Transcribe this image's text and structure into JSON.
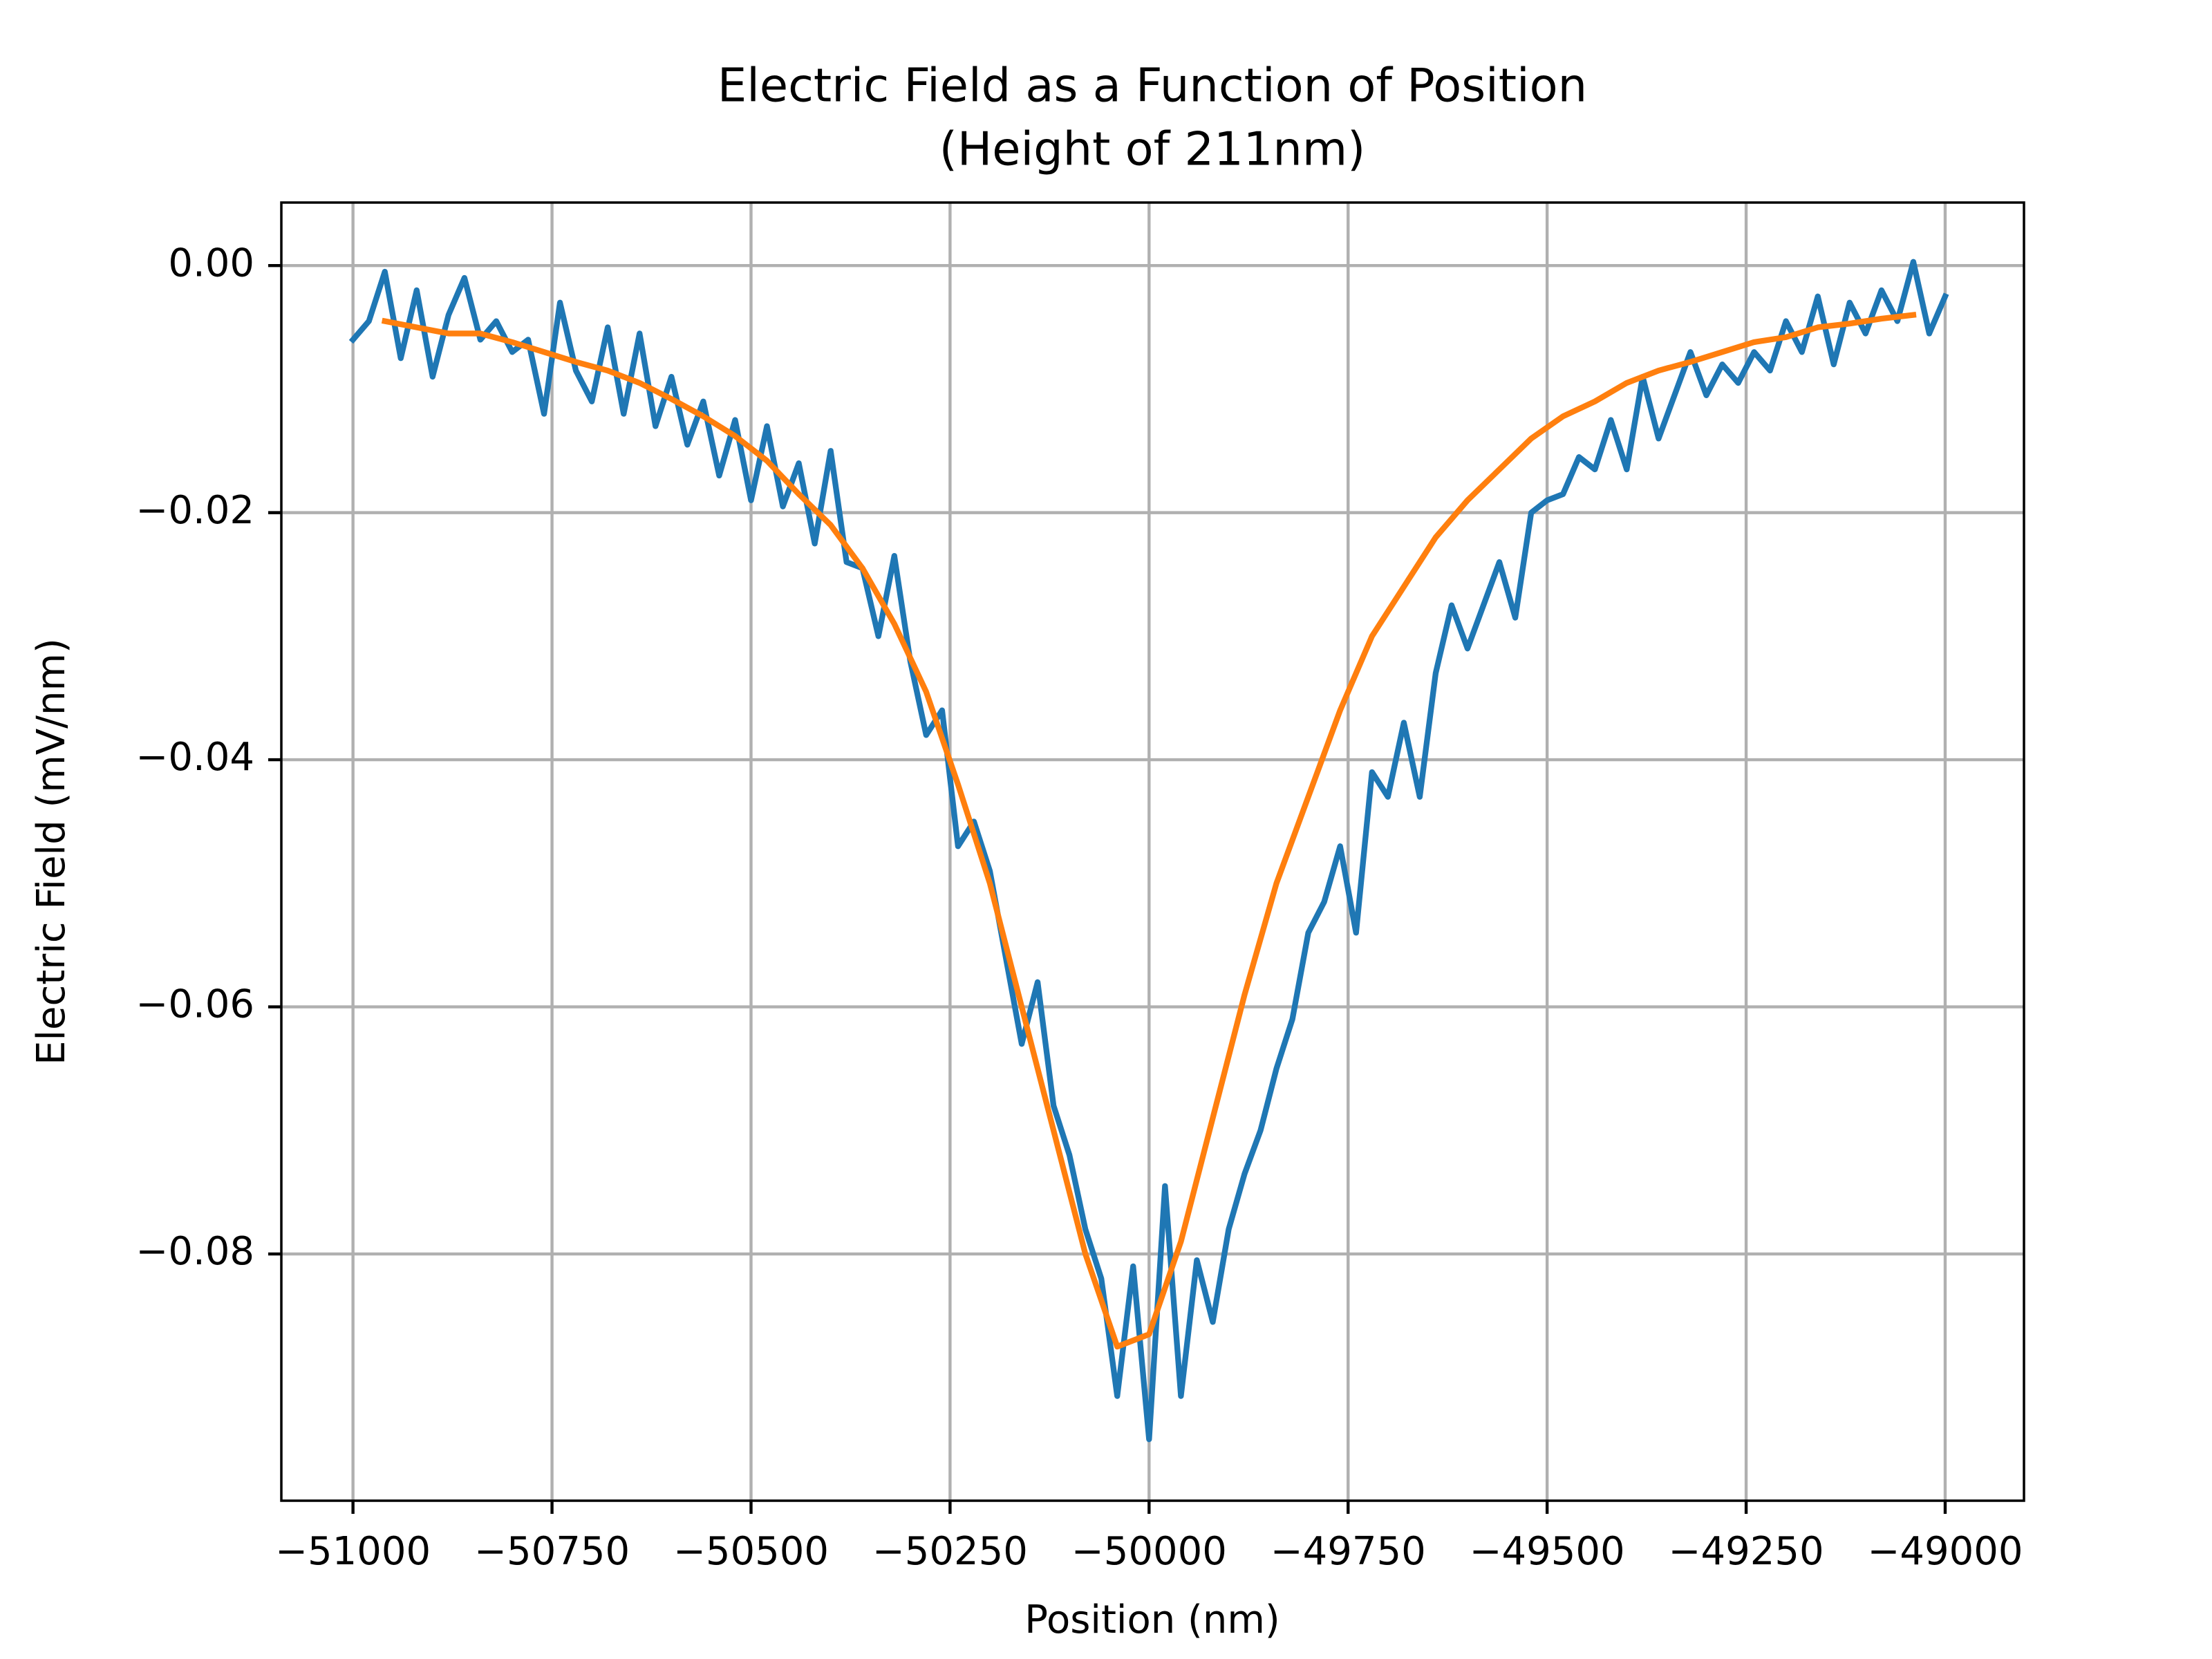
{
  "chart_data": {
    "type": "line",
    "title": "Electric Field as a Function of Position",
    "subtitle": "(Height of 211nm)",
    "x_label": "Position (nm)",
    "y_label": "Electric Field (mV/nm)",
    "xlim": [
      -51090,
      -48901
    ],
    "ylim": [
      -0.09997,
      0.0051
    ],
    "xticks": [
      {
        "value": -51000,
        "label": "−51000"
      },
      {
        "value": -50750,
        "label": "−50750"
      },
      {
        "value": -50500,
        "label": "−50500"
      },
      {
        "value": -50250,
        "label": "−50250"
      },
      {
        "value": -50000,
        "label": "−50000"
      },
      {
        "value": -49750,
        "label": "−49750"
      },
      {
        "value": -49500,
        "label": "−49500"
      },
      {
        "value": -49250,
        "label": "−49250"
      },
      {
        "value": -49000,
        "label": "−49000"
      }
    ],
    "yticks": [
      {
        "value": 0,
        "label": "0.00"
      },
      {
        "value": -0.02,
        "label": "−0.02"
      },
      {
        "value": -0.04,
        "label": "−0.04"
      },
      {
        "value": -0.06,
        "label": "−0.06"
      },
      {
        "value": -0.08,
        "label": "−0.08"
      }
    ],
    "grid": true,
    "series": [
      {
        "color": "#1f77b4",
        "x": [
          -51000,
          -50980,
          -50960,
          -50940,
          -50920,
          -50900,
          -50880,
          -50860,
          -50840,
          -50820,
          -50800,
          -50780,
          -50760,
          -50740,
          -50720,
          -50700,
          -50680,
          -50660,
          -50640,
          -50620,
          -50600,
          -50580,
          -50560,
          -50540,
          -50520,
          -50500,
          -50480,
          -50460,
          -50440,
          -50420,
          -50400,
          -50380,
          -50360,
          -50340,
          -50320,
          -50300,
          -50280,
          -50260,
          -50240,
          -50220,
          -50200,
          -50180,
          -50160,
          -50140,
          -50120,
          -50100,
          -50080,
          -50060,
          -50040,
          -50020,
          -50000,
          -49980,
          -49960,
          -49940,
          -49920,
          -49900,
          -49880,
          -49860,
          -49840,
          -49820,
          -49800,
          -49780,
          -49760,
          -49740,
          -49720,
          -49700,
          -49680,
          -49660,
          -49640,
          -49620,
          -49600,
          -49580,
          -49560,
          -49540,
          -49520,
          -49500,
          -49480,
          -49460,
          -49440,
          -49420,
          -49400,
          -49380,
          -49360,
          -49340,
          -49320,
          -49300,
          -49280,
          -49260,
          -49240,
          -49220,
          -49200,
          -49180,
          -49160,
          -49140,
          -49120,
          -49100,
          -49080,
          -49060,
          -49040,
          -49020,
          -49000
        ],
        "values": [
          -0.006,
          -0.0045,
          -0.0005,
          -0.0075,
          -0.002,
          -0.009,
          -0.004,
          -0.001,
          -0.006,
          -0.0045,
          -0.007,
          -0.006,
          -0.012,
          -0.003,
          -0.0085,
          -0.011,
          -0.005,
          -0.012,
          -0.0055,
          -0.013,
          -0.009,
          -0.0145,
          -0.011,
          -0.017,
          -0.0125,
          -0.019,
          -0.013,
          -0.0195,
          -0.016,
          -0.0225,
          -0.015,
          -0.024,
          -0.0245,
          -0.03,
          -0.0235,
          -0.032,
          -0.038,
          -0.036,
          -0.047,
          -0.045,
          -0.049,
          -0.056,
          -0.063,
          -0.058,
          -0.068,
          -0.072,
          -0.078,
          -0.082,
          -0.0915,
          -0.081,
          -0.095,
          -0.0745,
          -0.0915,
          -0.0805,
          -0.0855,
          -0.078,
          -0.0735,
          -0.07,
          -0.065,
          -0.061,
          -0.054,
          -0.0515,
          -0.047,
          -0.054,
          -0.041,
          -0.043,
          -0.037,
          -0.043,
          -0.033,
          -0.0275,
          -0.031,
          -0.0275,
          -0.024,
          -0.0285,
          -0.02,
          -0.019,
          -0.0185,
          -0.0155,
          -0.0165,
          -0.0125,
          -0.0165,
          -0.009,
          -0.014,
          -0.0105,
          -0.007,
          -0.0105,
          -0.008,
          -0.0095,
          -0.007,
          -0.0085,
          -0.0045,
          -0.007,
          -0.0025,
          -0.008,
          -0.003,
          -0.0055,
          -0.002,
          -0.0045,
          0.0003,
          -0.0055,
          -0.0025
        ]
      },
      {
        "color": "#ff7f0e",
        "x": [
          -50960,
          -50920,
          -50880,
          -50840,
          -50800,
          -50760,
          -50720,
          -50680,
          -50640,
          -50600,
          -50560,
          -50520,
          -50480,
          -50440,
          -50400,
          -50360,
          -50320,
          -50280,
          -50240,
          -50200,
          -50160,
          -50120,
          -50080,
          -50040,
          -50000,
          -49960,
          -49920,
          -49880,
          -49840,
          -49800,
          -49760,
          -49720,
          -49680,
          -49640,
          -49600,
          -49560,
          -49520,
          -49480,
          -49440,
          -49400,
          -49360,
          -49320,
          -49280,
          -49240,
          -49200,
          -49160,
          -49120,
          -49080,
          -49040
        ],
        "values": [
          -0.0045,
          -0.005,
          -0.0055,
          -0.0055,
          -0.0062,
          -0.007,
          -0.0078,
          -0.0085,
          -0.0095,
          -0.0108,
          -0.0122,
          -0.0138,
          -0.0158,
          -0.0185,
          -0.021,
          -0.0245,
          -0.029,
          -0.0345,
          -0.042,
          -0.05,
          -0.06,
          -0.07,
          -0.08,
          -0.0875,
          -0.0865,
          -0.079,
          -0.069,
          -0.059,
          -0.05,
          -0.043,
          -0.036,
          -0.03,
          -0.026,
          -0.022,
          -0.019,
          -0.0165,
          -0.014,
          -0.0122,
          -0.011,
          -0.0095,
          -0.0085,
          -0.0078,
          -0.007,
          -0.0062,
          -0.0058,
          -0.005,
          -0.0047,
          -0.0043,
          -0.004
        ]
      }
    ]
  }
}
